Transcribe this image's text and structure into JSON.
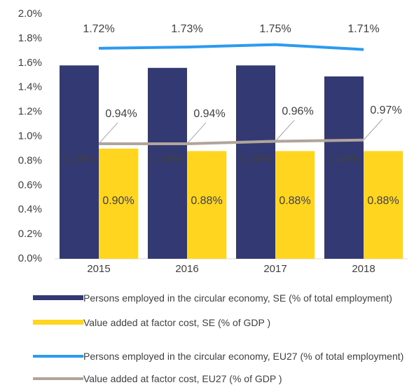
{
  "chart_data": {
    "type": "bar",
    "categories": [
      "2015",
      "2016",
      "2017",
      "2018"
    ],
    "ylim": [
      0,
      2.0
    ],
    "yticks": [
      {
        "value": 0,
        "label": "0.0%"
      },
      {
        "value": 0.2,
        "label": "0.2%"
      },
      {
        "value": 0.4,
        "label": "0.4%"
      },
      {
        "value": 0.6,
        "label": "0.6%"
      },
      {
        "value": 0.8,
        "label": "0.8%"
      },
      {
        "value": 1.0,
        "label": "1.0%"
      },
      {
        "value": 1.2,
        "label": "1.2%"
      },
      {
        "value": 1.4,
        "label": "1.4%"
      },
      {
        "value": 1.6,
        "label": "1.6%"
      },
      {
        "value": 1.8,
        "label": "1.8%"
      },
      {
        "value": 2.0,
        "label": "2.0%"
      }
    ],
    "grid": false,
    "legend": "bottom",
    "series": [
      {
        "name": "Persons employed in the circular economy, SE (% of total employment)",
        "type": "bar",
        "color": "#333a73",
        "values": [
          1.58,
          1.56,
          1.58,
          1.49
        ],
        "value_labels": [
          "1.58%",
          "1.56%",
          "1.58%",
          "1.49%"
        ]
      },
      {
        "name": "Value added at factor cost, SE (% of GDP )",
        "type": "bar",
        "color": "#ffd520",
        "values": [
          0.9,
          0.88,
          0.88,
          0.88
        ],
        "value_labels": [
          "0.90%",
          "0.88%",
          "0.88%",
          "0.88%"
        ]
      },
      {
        "name": "Persons employed in the circular economy, EU27 (% of total employment)",
        "type": "line",
        "color": "#2b9bf0",
        "values": [
          1.72,
          1.73,
          1.75,
          1.71
        ],
        "value_labels": [
          "1.72%",
          "1.73%",
          "1.75%",
          "1.71%"
        ]
      },
      {
        "name": "Value added at factor cost, EU27 (% of GDP )",
        "type": "line",
        "color": "#b0a49b",
        "values": [
          0.94,
          0.94,
          0.96,
          0.97
        ],
        "value_labels": [
          "0.94%",
          "0.94%",
          "0.96%",
          "0.97%"
        ]
      }
    ]
  }
}
